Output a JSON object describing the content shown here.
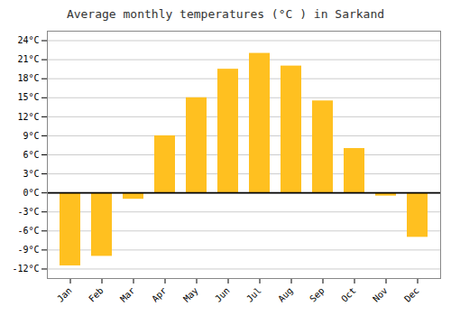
{
  "chart_data": {
    "type": "bar",
    "title": "Average monthly temperatures (°C ) in Sarkand",
    "categories": [
      "Jan",
      "Feb",
      "Mar",
      "Apr",
      "May",
      "Jun",
      "Jul",
      "Aug",
      "Sep",
      "Oct",
      "Nov",
      "Dec"
    ],
    "values": [
      -11.5,
      -10.0,
      -1.0,
      9.0,
      15.0,
      19.5,
      22.0,
      20.0,
      14.5,
      7.0,
      -0.5,
      -7.0
    ],
    "color": "#FFC020",
    "ylim": [
      -13.5,
      25.5
    ],
    "yticks": [
      {
        "value": -12,
        "label": "-12°C"
      },
      {
        "value": -9,
        "label": "-9°C"
      },
      {
        "value": -6,
        "label": "-6°C"
      },
      {
        "value": -3,
        "label": "-3°C"
      },
      {
        "value": 0,
        "label": "0°C"
      },
      {
        "value": 3,
        "label": "3°C"
      },
      {
        "value": 6,
        "label": "6°C"
      },
      {
        "value": 9,
        "label": "9°C"
      },
      {
        "value": 12,
        "label": "12°C"
      },
      {
        "value": 15,
        "label": "15°C"
      },
      {
        "value": 18,
        "label": "18°C"
      },
      {
        "value": 21,
        "label": "21°C"
      },
      {
        "value": 24,
        "label": "24°C"
      }
    ],
    "grid": true
  }
}
